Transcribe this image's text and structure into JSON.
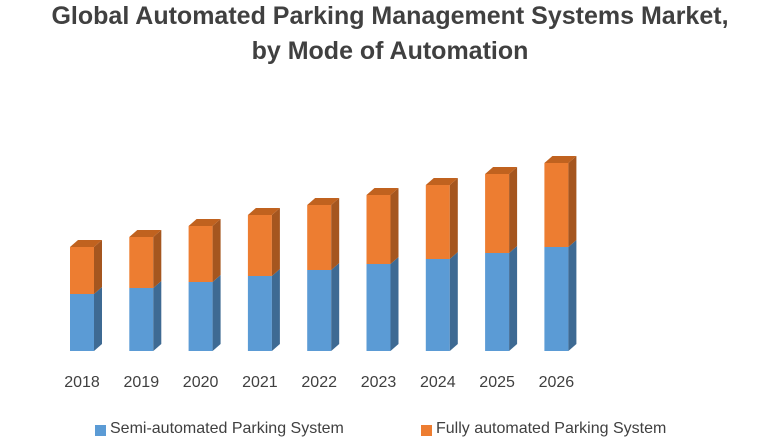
{
  "chart_data": {
    "type": "bar",
    "stacked": true,
    "style": "3d",
    "title": "Global Automated Parking Management Systems Market, by Mode of Automation",
    "title_lines": [
      "Global Automated Parking Management Systems Market,",
      "by Mode of Automation"
    ],
    "categories": [
      "2018",
      "2019",
      "2020",
      "2021",
      "2022",
      "2023",
      "2024",
      "2025",
      "2026"
    ],
    "series": [
      {
        "name": "Semi-automated Parking System",
        "color": "#5b9bd5",
        "values": [
          5.7,
          6.3,
          6.9,
          7.5,
          8.1,
          8.7,
          9.2,
          9.8,
          10.4
        ]
      },
      {
        "name": "Fully automated Parking System",
        "color": "#ed7d31",
        "values": [
          4.7,
          5.1,
          5.6,
          6.1,
          6.5,
          6.9,
          7.4,
          7.9,
          8.4
        ]
      }
    ],
    "ylim": [
      0,
      20
    ],
    "y_axis_shown": false,
    "grid": false,
    "legend_position": "bottom"
  }
}
